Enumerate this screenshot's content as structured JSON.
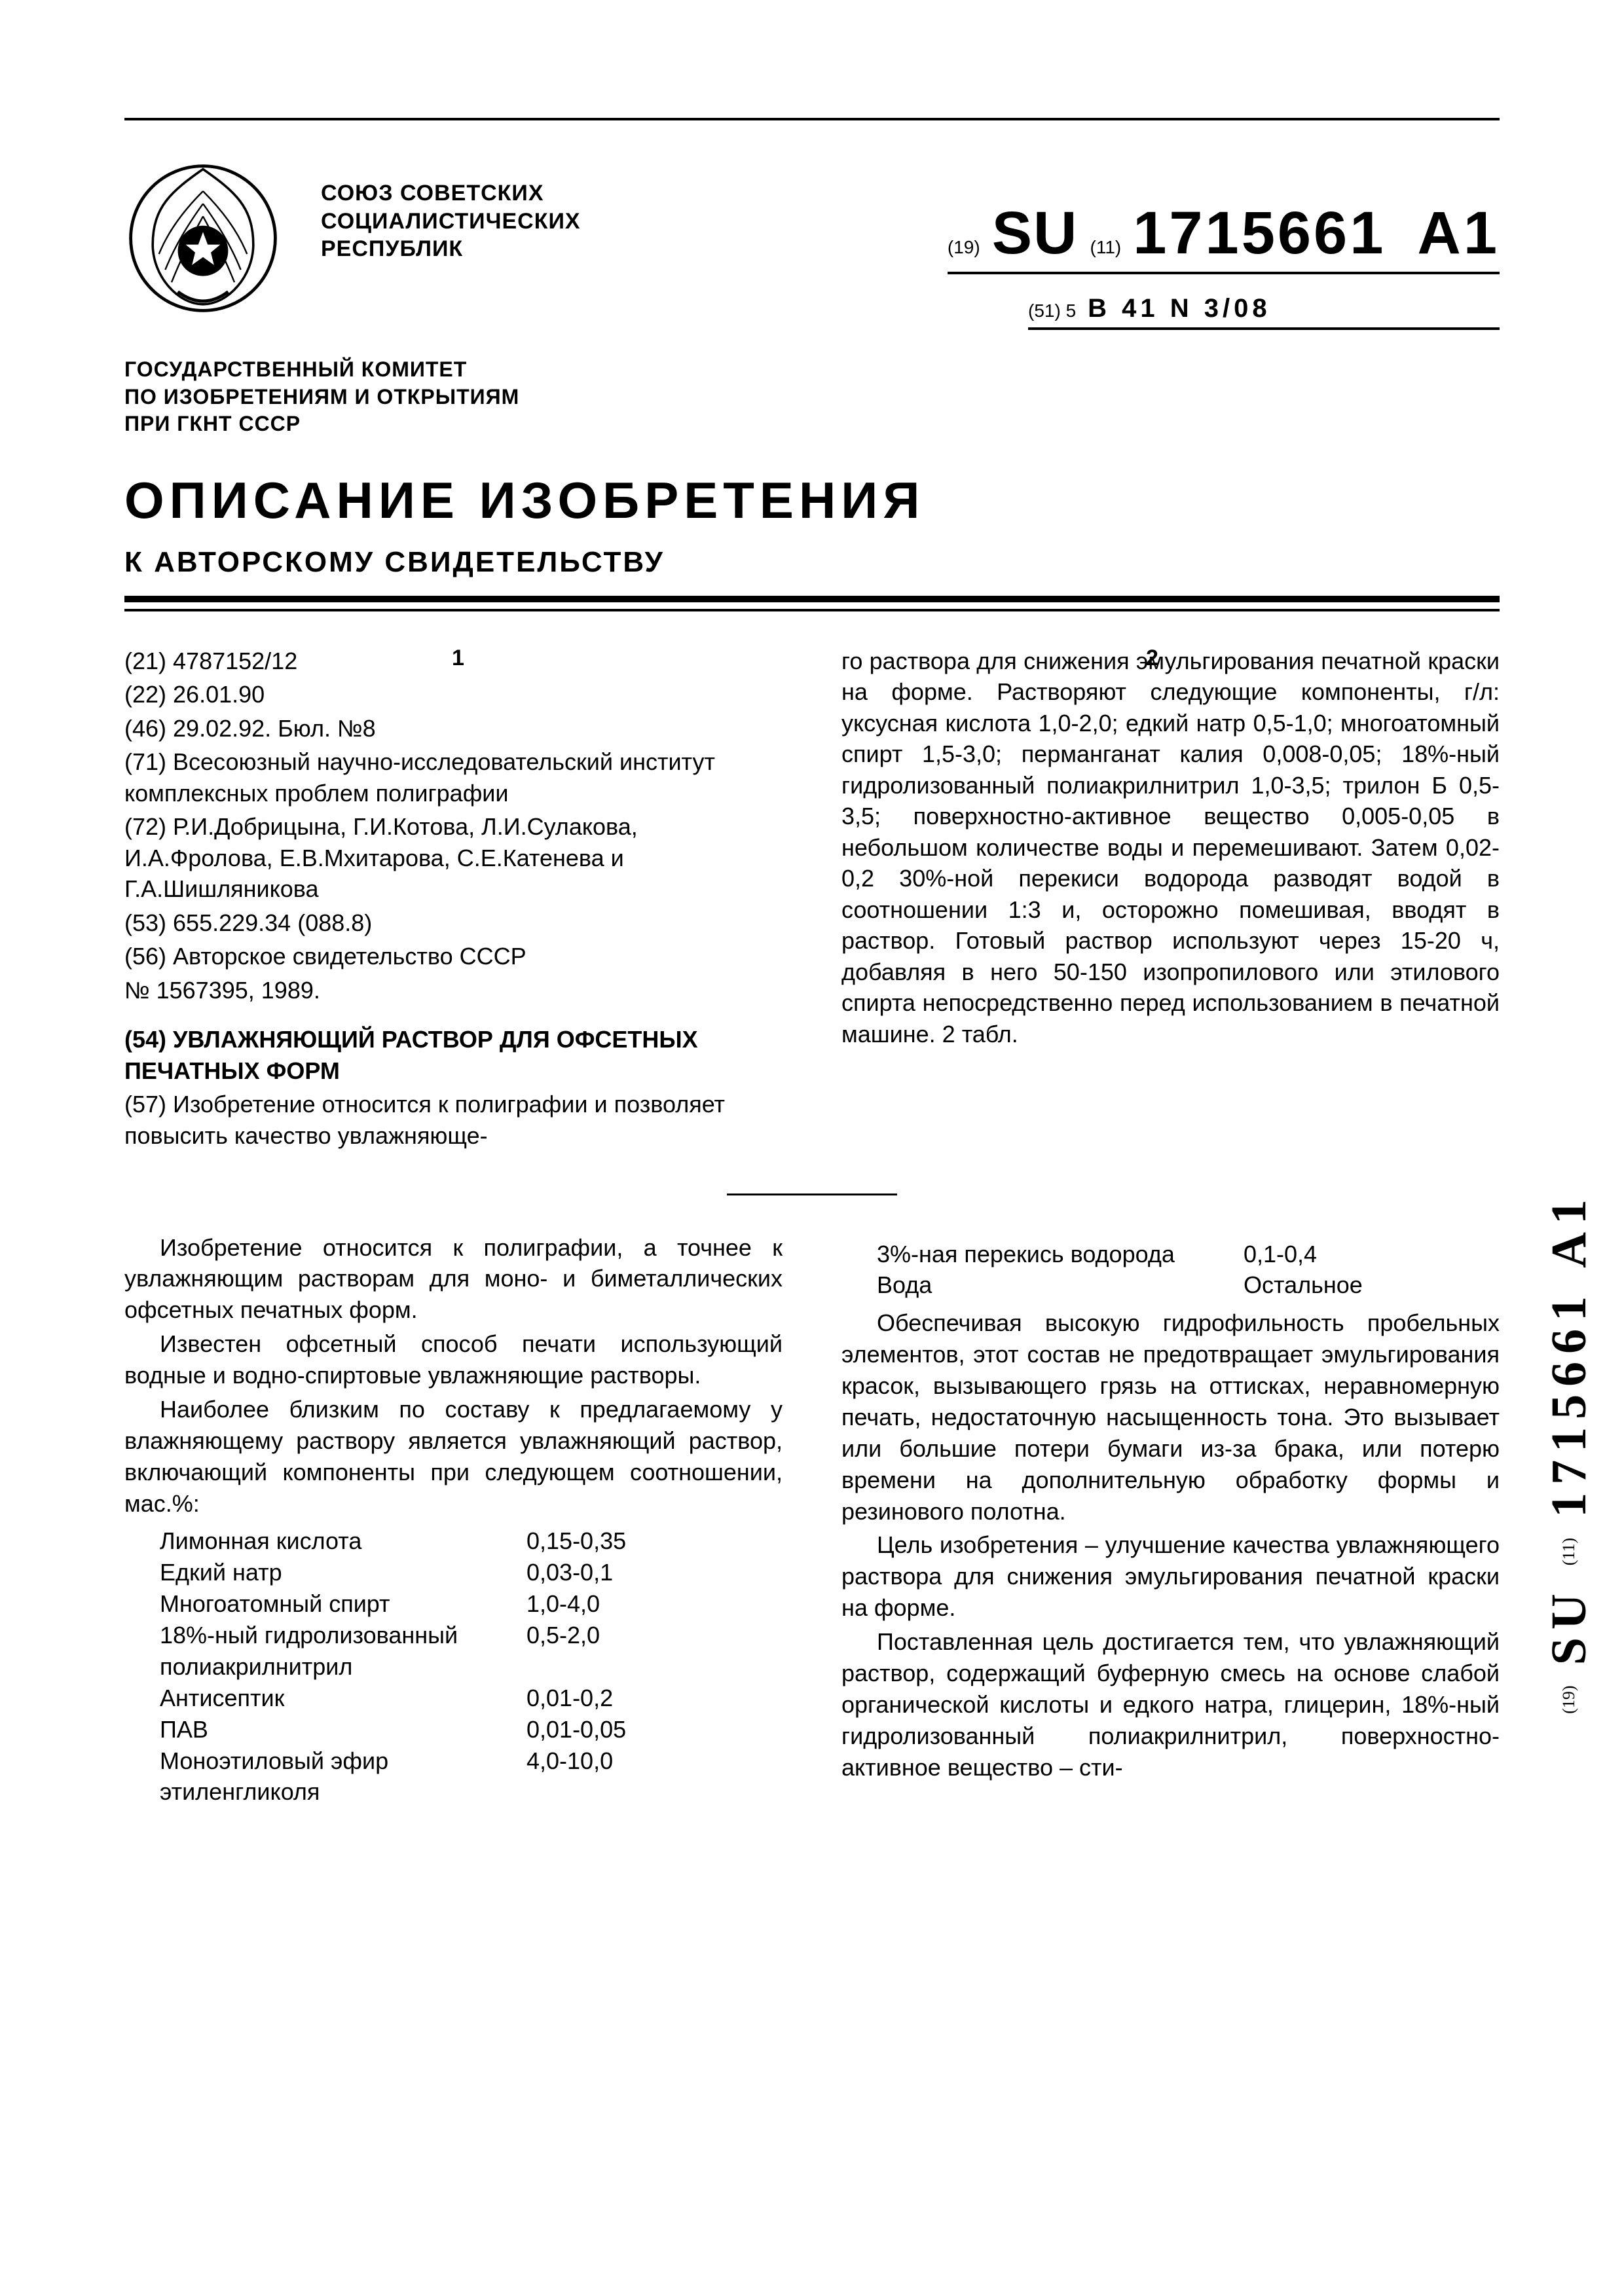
{
  "header": {
    "issuer_l1": "СОЮЗ СОВЕТСКИХ",
    "issuer_l2": "СОЦИАЛИСТИЧЕСКИХ",
    "issuer_l3": "РЕСПУБЛИК",
    "committee_l1": "ГОСУДАРСТВЕННЫЙ КОМИТЕТ",
    "committee_l2": "ПО ИЗОБРЕТЕНИЯМ И ОТКРЫТИЯМ",
    "committee_l3": "ПРИ ГКНТ СССР",
    "doc_title": "ОПИСАНИЕ ИЗОБРЕТЕНИЯ",
    "doc_subtitle": "К АВТОРСКОМУ СВИДЕТЕЛЬСТВУ"
  },
  "pub": {
    "code19": "(19)",
    "cc": "SU",
    "code11": "(11)",
    "number": "1715661",
    "kind": "A1",
    "code51": "(51) 5",
    "ipc": "B 41 N 3/08"
  },
  "colnums": {
    "c1": "1",
    "c2": "2"
  },
  "biblio": {
    "f21": "(21) 4787152/12",
    "f22": "(22) 26.01.90",
    "f46": "(46) 29.02.92. Бюл. №8",
    "f71": "(71) Всесоюзный научно-исследовательский институт комплексных проблем полиграфии",
    "f72": "(72) Р.И.Добрицына, Г.И.Котова, Л.И.Сулакова, И.А.Фролова, Е.В.Мхитарова, С.Е.Катенева и Г.А.Шишляникова",
    "f53": "(53) 655.229.34 (088.8)",
    "f56a": "(56) Авторское свидетельство СССР",
    "f56b": "№ 1567395, 1989.",
    "f54": "(54) УВЛАЖНЯЮЩИЙ РАСТВОР ДЛЯ ОФСЕТНЫХ ПЕЧАТНЫХ ФОРМ",
    "f57a": "(57) Изобретение относится к полиграфии и позволяет повысить качество увлажняюще-"
  },
  "abstract2": "го раствора для снижения эмульгирования печатной краски на форме. Растворяют следующие компоненты, г/л: уксусная кислота 1,0-2,0; едкий натр 0,5-1,0; многоатомный спирт 1,5-3,0; перманганат калия 0,008-0,05; 18%-ный гидролизованный полиакрилнитрил 1,0-3,5; трилон Б 0,5-3,5; поверхностно-активное вещество 0,005-0,05 в небольшом количестве воды и перемешивают. Затем 0,02-0,2 30%-ной перекиси водорода разводят водой в соотношении 1:3 и, осторожно помешивая, вводят в раствор. Готовый раствор используют через 15-20 ч, добавляя в него 50-150 изопропилового или этилового спирта непосредственно перед использованием в печатной машине. 2 табл.",
  "body": {
    "p1": "Изобретение относится к полиграфии, а точнее к увлажняющим растворам для моно- и биметаллических офсетных печатных форм.",
    "p2": "Известен офсетный способ печати использующий водные и водно-спиртовые увлажняющие растворы.",
    "p3": "Наиболее близким по составу к предлагаемому у влажняющему раствору является увлажняющий раствор, включающий компоненты при следующем соотношении, мас.%:",
    "table": [
      {
        "name": "Лимонная кислота",
        "val": "0,15-0,35"
      },
      {
        "name": "Едкий натр",
        "val": "0,03-0,1"
      },
      {
        "name": "Многоатомный спирт",
        "val": "1,0-4,0"
      },
      {
        "name": "18%-ный гидролизованный полиакрилнитрил",
        "val": "0,5-2,0"
      },
      {
        "name": "Антисептик",
        "val": "0,01-0,2"
      },
      {
        "name": "ПАВ",
        "val": "0,01-0,05"
      },
      {
        "name": "Моноэтиловый эфир этиленгликоля",
        "val": "4,0-10,0"
      }
    ],
    "table2": [
      {
        "name": "3%-ная перекись водорода",
        "val": "0,1-0,4"
      },
      {
        "name": "Вода",
        "val": "Остальное"
      }
    ],
    "p4": "Обеспечивая высокую гидрофильность пробельных элементов, этот состав не предотвращает эмульгирования красок, вызывающего грязь на оттисках, неравномерную печать, недостаточную насыщенность тона. Это вызывает или большие потери бумаги из-за брака, или потерю времени на дополнительную обработку формы и резинового полотна.",
    "p5": "Цель изобретения – улучшение качества увлажняющего раствора для снижения эмульгирования печатной краски на форме.",
    "p6": "Поставленная цель достигается тем, что увлажняющий раствор, содержащий буферную смесь на основе слабой органической кислоты и едкого натра, глицерин, 18%-ный гидролизованный полиакрилнитрил, поверхностно-активное вещество – сти-"
  },
  "side": {
    "code19": "(19)",
    "cc": "SU",
    "code11": "(11)",
    "num": "1715661",
    "kind": "A1"
  }
}
